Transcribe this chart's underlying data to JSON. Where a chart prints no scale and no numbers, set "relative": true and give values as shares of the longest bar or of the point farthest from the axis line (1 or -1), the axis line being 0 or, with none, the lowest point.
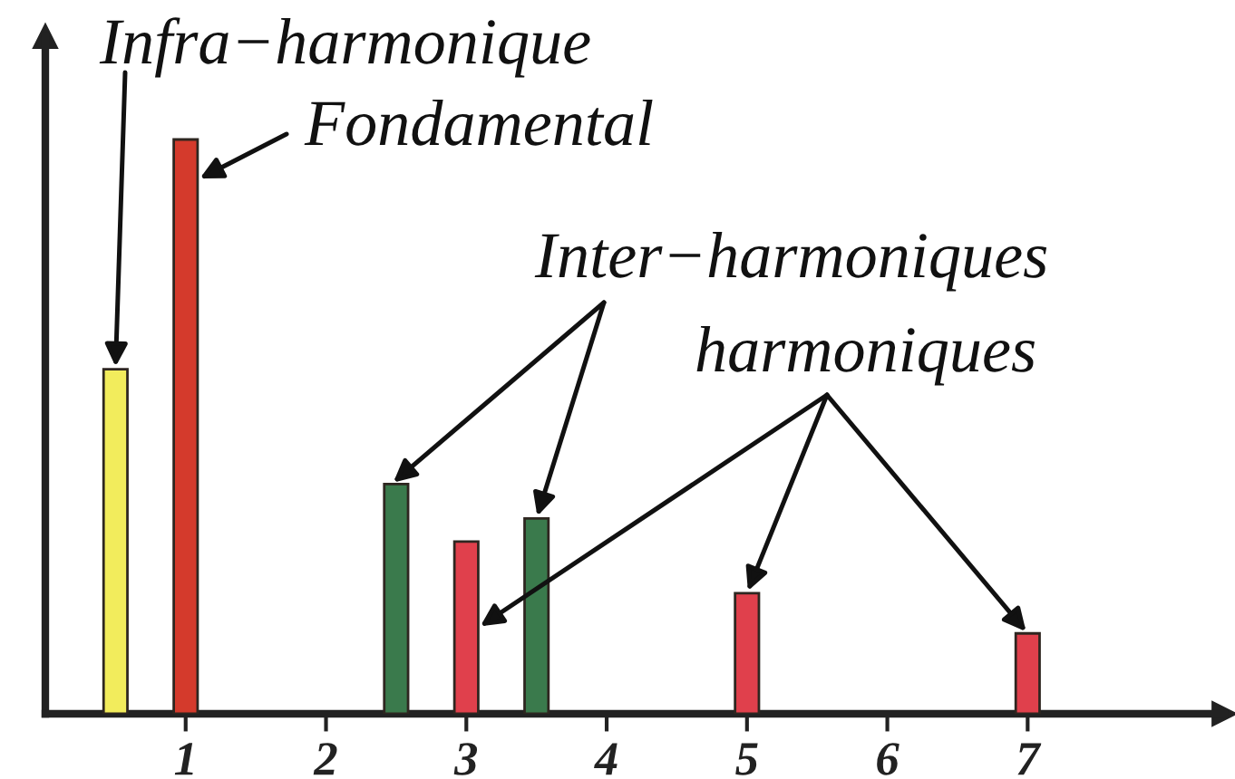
{
  "chart_data": {
    "type": "bar",
    "relative": true,
    "xlim": [
      0,
      8.4
    ],
    "xticks": [
      1,
      2,
      3,
      4,
      5,
      6,
      7
    ],
    "series": [
      {
        "name": "Infra−harmonique",
        "color": "#f2ec5c",
        "x": [
          0.5
        ],
        "values": [
          0.6
        ]
      },
      {
        "name": "Fondamental",
        "color": "#d43a2c",
        "x": [
          1
        ],
        "values": [
          1
        ]
      },
      {
        "name": "Inter−harmoniques",
        "color": "#3a7a4c",
        "x": [
          2.5,
          3.5
        ],
        "values": [
          0.4,
          0.34
        ]
      },
      {
        "name": "harmoniques",
        "color": "#e0404c",
        "x": [
          3,
          5,
          7
        ],
        "values": [
          0.3,
          0.21,
          0.14
        ]
      }
    ]
  }
}
